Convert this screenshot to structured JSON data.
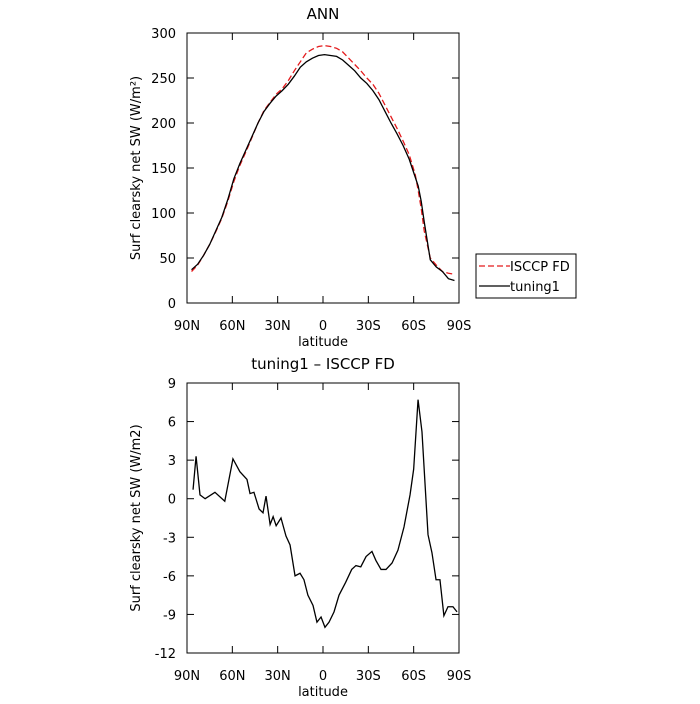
{
  "chart_data": [
    {
      "type": "line",
      "title": "ANN",
      "x_label": "latitude",
      "y_label": "Surf clearsky net SW (W/m²)",
      "xlim": [
        90,
        -90
      ],
      "ylim": [
        0,
        300
      ],
      "xticks": [
        {
          "value": 90,
          "label": "90N"
        },
        {
          "value": 60,
          "label": "60N"
        },
        {
          "value": 30,
          "label": "30N"
        },
        0,
        {
          "value": -30,
          "label": "30S"
        },
        {
          "value": -60,
          "label": "60S"
        },
        {
          "value": -90,
          "label": "90S"
        }
      ],
      "yticks": [
        0,
        50,
        100,
        150,
        200,
        250,
        300
      ],
      "series": [
        {
          "name": "ISCCP FD",
          "color": "#e41a1c",
          "dash": true,
          "x": [
            87,
            83,
            79,
            75,
            71,
            67,
            63,
            59,
            55,
            51,
            47,
            43,
            39,
            35,
            31,
            27,
            23,
            19,
            15,
            11,
            7,
            3,
            -1,
            -5,
            -9,
            -13,
            -17,
            -21,
            -25,
            -29,
            -33,
            -37,
            -41,
            -45,
            -49,
            -53,
            -57,
            -61,
            -63,
            -65,
            -67,
            -71,
            -75,
            -79,
            -83,
            -87
          ],
          "values": [
            35,
            42,
            53,
            65,
            79,
            94,
            113,
            135,
            153,
            168,
            184,
            200,
            214,
            223,
            232,
            238,
            247,
            258,
            268,
            278,
            282,
            285,
            286,
            285,
            283,
            279,
            272,
            265,
            258,
            250,
            243,
            233,
            220,
            207,
            194,
            180,
            165,
            143,
            125,
            105,
            80,
            50,
            42,
            35,
            33,
            32
          ]
        },
        {
          "name": "tuning1",
          "color": "#000000",
          "dash": false,
          "x": [
            87,
            83,
            79,
            75,
            71,
            67,
            63,
            59,
            55,
            51,
            47,
            43,
            39,
            35,
            31,
            27,
            23,
            19,
            15,
            11,
            7,
            3,
            -1,
            -5,
            -9,
            -13,
            -17,
            -21,
            -25,
            -29,
            -33,
            -37,
            -41,
            -45,
            -49,
            -53,
            -57,
            -61,
            -63,
            -65,
            -67,
            -71,
            -75,
            -79,
            -83,
            -87
          ],
          "values": [
            37,
            43,
            53,
            65,
            80,
            95,
            115,
            138,
            155,
            170,
            185,
            200,
            213,
            222,
            230,
            236,
            243,
            252,
            262,
            268,
            272,
            275,
            276,
            275,
            274,
            270,
            264,
            258,
            250,
            244,
            236,
            226,
            213,
            200,
            188,
            175,
            160,
            140,
            130,
            113,
            90,
            48,
            40,
            35,
            27,
            25
          ]
        }
      ]
    },
    {
      "type": "line",
      "title": "tuning1 – ISCCP FD",
      "x_label": "latitude",
      "y_label": "Surf clearsky net SW (W/m2)",
      "xlim": [
        90,
        -90
      ],
      "ylim": [
        -12,
        9
      ],
      "xticks": [
        {
          "value": 90,
          "label": "90N"
        },
        {
          "value": 60,
          "label": "60N"
        },
        {
          "value": 30,
          "label": "30N"
        },
        0,
        {
          "value": -30,
          "label": "30S"
        },
        {
          "value": -60,
          "label": "60S"
        },
        {
          "value": -90,
          "label": "90S"
        }
      ],
      "yticks": [
        -12,
        -9,
        -6,
        -3,
        0,
        3,
        6,
        9
      ],
      "series": [
        {
          "color": "#000000",
          "dash": false,
          "x": [
            86,
            84,
            81.4,
            78,
            71.5,
            65,
            59.6,
            55,
            50.3,
            48.3,
            45.7,
            42.3,
            39.7,
            37.7,
            35,
            33,
            31,
            27.8,
            24.5,
            21.8,
            18.5,
            15.2,
            12.6,
            10,
            6.6,
            4,
            1.3,
            -1.3,
            -4,
            -7.3,
            -10.6,
            -15,
            -19,
            -21.8,
            -25,
            -28.5,
            -32.4,
            -35,
            -38.4,
            -41.7,
            -45.7,
            -49.6,
            -53.6,
            -57.6,
            -60,
            -62.9,
            -65.5,
            -69.5,
            -72.1,
            -74.8,
            -77.4,
            -80,
            -82.7,
            -86,
            -88.7
          ],
          "values": [
            0.7,
            3.3,
            0.3,
            0,
            0.5,
            -0.2,
            3.1,
            2.1,
            1.5,
            0.4,
            0.5,
            -0.8,
            -1.1,
            0.2,
            -2,
            -1.4,
            -2.1,
            -1.5,
            -2.9,
            -3.6,
            -6,
            -5.8,
            -6.3,
            -7.5,
            -8.3,
            -9.6,
            -9.2,
            -10,
            -9.6,
            -8.8,
            -7.5,
            -6.5,
            -5.5,
            -5.2,
            -5.3,
            -4.5,
            -4.1,
            -4.8,
            -5.5,
            -5.5,
            -5,
            -4,
            -2.2,
            0.3,
            2.3,
            7.7,
            5.2,
            -2.8,
            -4.2,
            -6.3,
            -6.3,
            -9.1,
            -8.4,
            -8.4,
            -8.8
          ]
        }
      ]
    }
  ]
}
